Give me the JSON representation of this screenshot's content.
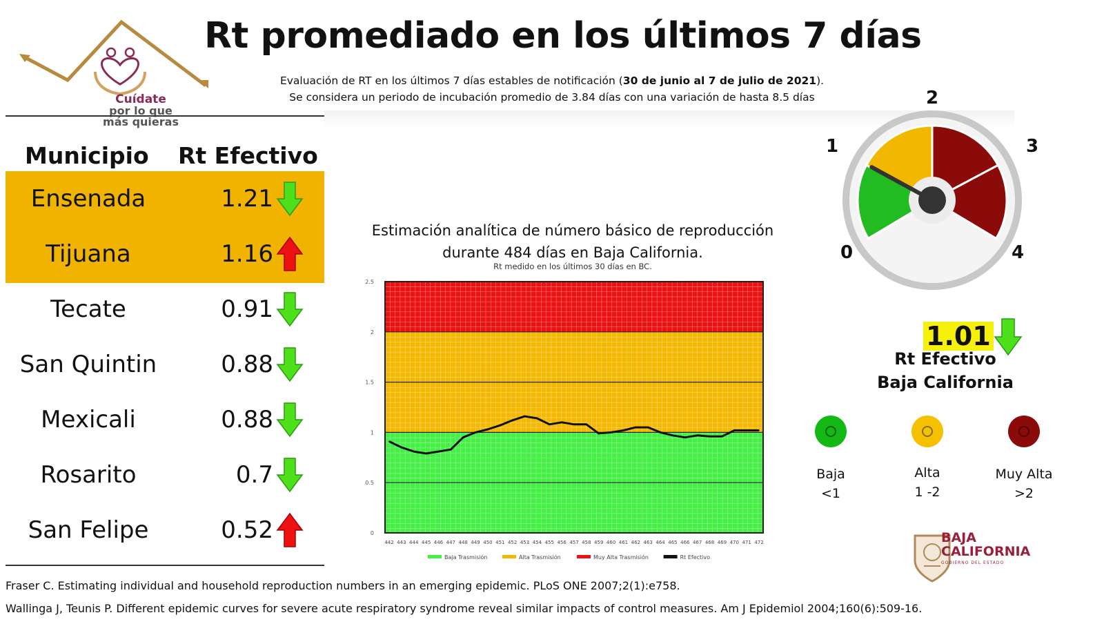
{
  "header": {
    "title": "Rt promediado en los últimos 7 días",
    "subtitle_line1_pre": "Evaluación de RT en los últimos 7 días estables de notificación (",
    "subtitle_line1_bold": "30 de junio al 7 de julio de 2021",
    "subtitle_line1_post": ").",
    "subtitle_line2": "Se considera un periodo de incubación promedio de 3.84 días con una variación de hasta 8.5 días"
  },
  "logo": {
    "line1": "Cuídate",
    "line2": "por lo que",
    "line3": "más quieras"
  },
  "table": {
    "col_municipio": "Municipio",
    "col_rt": "Rt Efectivo",
    "rows": [
      {
        "name": "Ensenada",
        "value": "1.21",
        "trend": "down",
        "highlight": true
      },
      {
        "name": "Tijuana",
        "value": "1.16",
        "trend": "up",
        "highlight": true
      },
      {
        "name": "Tecate",
        "value": "0.91",
        "trend": "down",
        "highlight": false
      },
      {
        "name": "San Quintin",
        "value": "0.88",
        "trend": "down",
        "highlight": false
      },
      {
        "name": "Mexicali",
        "value": "0.88",
        "trend": "down",
        "highlight": false
      },
      {
        "name": "Rosarito",
        "value": "0.7",
        "trend": "down",
        "highlight": false
      },
      {
        "name": "San Felipe",
        "value": "0.52",
        "trend": "up",
        "highlight": false
      }
    ]
  },
  "chart_data": {
    "type": "line",
    "title_line1": "Estimación analítica de número básico de reproducción",
    "title_line2": "durante 484 días en Baja California.",
    "subtitle": "Rt medido en los últimos 30 días en BC.",
    "ylim": [
      0,
      2.5
    ],
    "y_ticks": [
      "0",
      "0.5",
      "1",
      "1.5",
      "2",
      "2.5"
    ],
    "x": [
      442,
      443,
      444,
      445,
      446,
      447,
      448,
      449,
      450,
      451,
      452,
      453,
      454,
      455,
      456,
      457,
      458,
      459,
      460,
      461,
      462,
      463,
      464,
      465,
      466,
      467,
      468,
      469,
      470,
      471,
      472
    ],
    "x_ticks": [
      "442",
      "443",
      "444",
      "445",
      "446",
      "447",
      "448",
      "449",
      "450",
      "451",
      "452",
      "453",
      "454",
      "455",
      "456",
      "457",
      "458",
      "459",
      "460",
      "461",
      "462",
      "463",
      "464",
      "465",
      "466",
      "467",
      "468",
      "469",
      "470",
      "471",
      "472"
    ],
    "bands": [
      {
        "name": "Baja Trasmisión",
        "from": 0,
        "to": 1,
        "color": "#44f044"
      },
      {
        "name": "Alta Trasmisión",
        "from": 1,
        "to": 2,
        "color": "#f5b800"
      },
      {
        "name": "Muy Alta Trasmisión",
        "from": 2,
        "to": 2.5,
        "color": "#ee1111"
      }
    ],
    "series": [
      {
        "name": "Rt Efectivo",
        "color": "#111111",
        "values": [
          0.91,
          0.85,
          0.81,
          0.79,
          0.81,
          0.83,
          0.95,
          1.0,
          1.03,
          1.07,
          1.12,
          1.16,
          1.14,
          1.08,
          1.1,
          1.08,
          1.08,
          0.99,
          1.0,
          1.02,
          1.05,
          1.05,
          1.0,
          0.97,
          0.95,
          0.97,
          0.96,
          0.96,
          1.02,
          1.02,
          1.02
        ]
      }
    ],
    "legend": [
      "Baja Trasmisión",
      "Alta Trasmisión",
      "Muy Alta Trasmisión",
      "Rt Efectivo"
    ]
  },
  "gauge": {
    "min": 0,
    "max": 4,
    "value": 1.01,
    "labels": [
      "0",
      "1",
      "2",
      "3",
      "4"
    ],
    "colors": {
      "green": "#22bb22",
      "yellow": "#f2b800",
      "red": "#8b0a0a",
      "rim": "#c8c8c8"
    }
  },
  "summary": {
    "value": "1.01",
    "trend": "down",
    "label1": "Rt Efectivo",
    "label2": "Baja California"
  },
  "legend_levels": [
    {
      "name": "Baja",
      "range": "<1",
      "color": "#14b814"
    },
    {
      "name": "Alta",
      "range": "1 -2",
      "color": "#f5c000"
    },
    {
      "name": "Muy Alta",
      "range": ">2",
      "color": "#8b0a0a"
    }
  ],
  "state_logo": {
    "line1": "BAJA",
    "line2": "CALIFORNIA",
    "line3": "GOBIERNO DEL ESTADO"
  },
  "references": [
    "Fraser C. Estimating individual and household reproduction numbers in an emerging epidemic. PLoS ONE 2007;2(1):e758.",
    "Wallinga J, Teunis P. Different epidemic curves for severe acute respiratory syndrome reveal similar impacts of control measures. Am J Epidemiol 2004;160(6):509-16."
  ]
}
